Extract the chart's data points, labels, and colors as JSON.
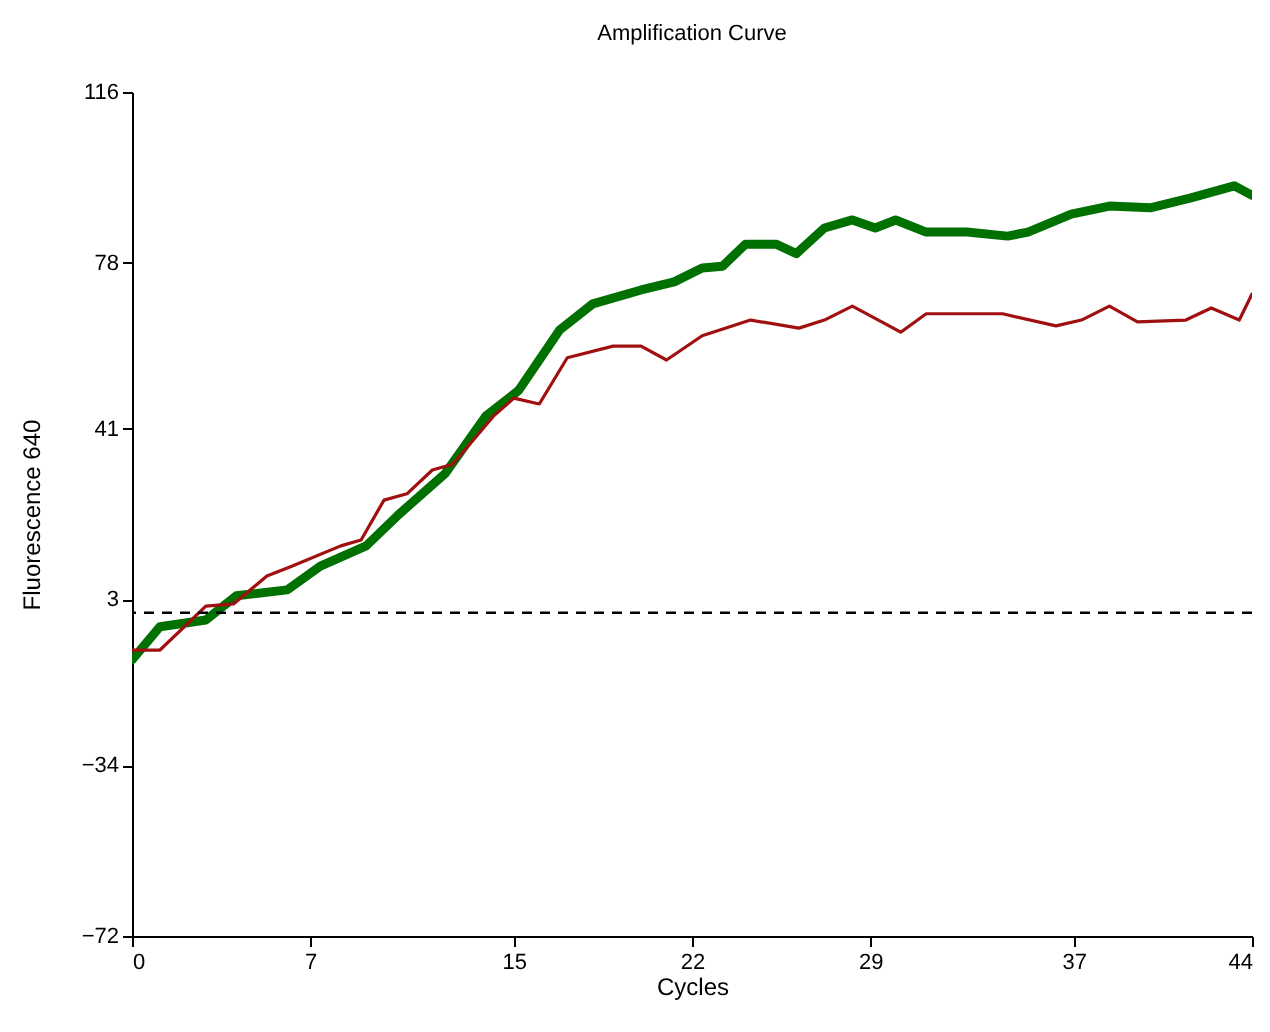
{
  "chart_data": {
    "type": "line",
    "title": "Amplification Curve",
    "xlabel": "Cycles",
    "ylabel": "Fluorescence 640",
    "xlim": [
      0,
      44
    ],
    "xticks": [
      0,
      7,
      15,
      22,
      29,
      37,
      44
    ],
    "ylim": [
      -72,
      116
    ],
    "yticks": [
      -72,
      -34,
      3,
      41,
      78,
      116
    ],
    "grid": false,
    "ref_lines": [
      {
        "axis": "y",
        "value": 0,
        "line_style": "dashed",
        "color": "#000000"
      }
    ],
    "series": [
      {
        "color": "#007000",
        "x": [
          0,
          1.1,
          2.9,
          4.1,
          6.1,
          7.4,
          9.2,
          10.5,
          12.3,
          13.9,
          15.2,
          16.8,
          18.1,
          20,
          21.3,
          22.4,
          23.2,
          24.1,
          25.3,
          26.1,
          27.2,
          28.3,
          29.2,
          30,
          31.2,
          32.8,
          34.4,
          35.2,
          36.9,
          38.4,
          40,
          41.6,
          43.3,
          44
        ],
        "values": [
          -10.5,
          -3.1,
          -1.6,
          3.8,
          5.1,
          10.4,
          14.9,
          22,
          31,
          43.8,
          49.6,
          63,
          68.8,
          71.9,
          73.7,
          76.8,
          77.2,
          82.1,
          82.1,
          80,
          85.7,
          87.5,
          85.7,
          87.5,
          84.8,
          84.8,
          83.9,
          84.8,
          88.8,
          90.6,
          90.2,
          92.4,
          95.1,
          93
        ]
      },
      {
        "color": "#a01010",
        "x": [
          0,
          1.1,
          2.9,
          4,
          5.3,
          6.3,
          8.2,
          9,
          9.9,
          10.8,
          11.8,
          12.6,
          14.2,
          15,
          16,
          17.1,
          18.9,
          20,
          21,
          22.4,
          24.3,
          26.2,
          27.2,
          28.3,
          30.2,
          31.2,
          34.2,
          36.3,
          37.3,
          38.4,
          39.5,
          41.4,
          42.4,
          43.5,
          44
        ],
        "values": [
          -8.3,
          -8.3,
          1.5,
          2,
          8.2,
          10.4,
          14.9,
          16.2,
          25.1,
          26.5,
          31.8,
          33.1,
          43.8,
          47.8,
          46.5,
          56.8,
          59.4,
          59.4,
          56.3,
          61.7,
          65.2,
          63.4,
          65.2,
          68.3,
          62.5,
          66.6,
          66.6,
          63.9,
          65.2,
          68.3,
          64.8,
          65.2,
          67.9,
          65.2,
          71
        ]
      }
    ]
  }
}
